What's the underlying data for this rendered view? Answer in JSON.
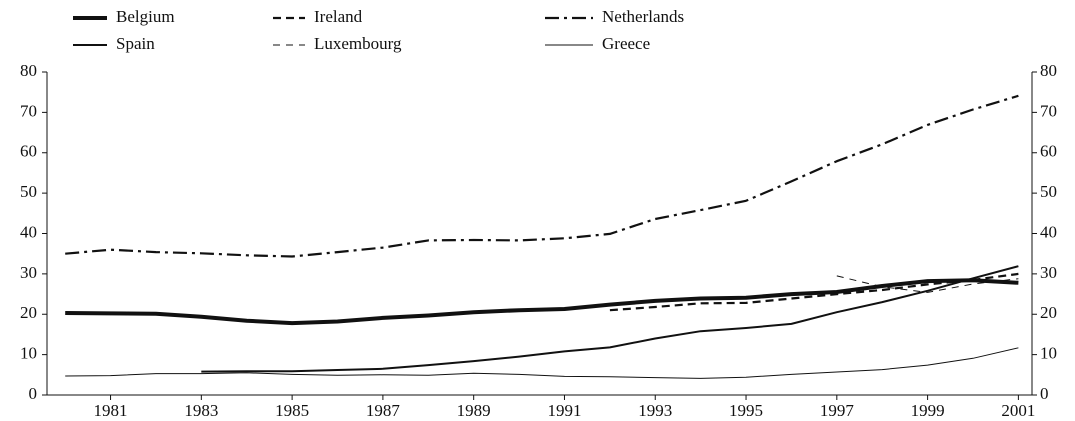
{
  "chart_data": {
    "type": "line",
    "x": [
      1980,
      1981,
      1982,
      1983,
      1984,
      1985,
      1986,
      1987,
      1988,
      1989,
      1990,
      1991,
      1992,
      1993,
      1994,
      1995,
      1996,
      1997,
      1998,
      1999,
      2000,
      2001
    ],
    "series": [
      {
        "name": "Belgium",
        "color": "#111111",
        "values": [
          20.3,
          20.2,
          20.1,
          19.4,
          18.4,
          17.8,
          18.2,
          19.1,
          19.7,
          20.5,
          21.0,
          21.3,
          22.4,
          23.3,
          23.9,
          24.1,
          25.0,
          25.5,
          27.0,
          28.2,
          28.4,
          27.8
        ]
      },
      {
        "name": "Ireland",
        "color": "#111111",
        "values": [
          null,
          null,
          null,
          null,
          null,
          null,
          null,
          null,
          null,
          null,
          null,
          null,
          21.0,
          21.8,
          22.7,
          22.8,
          23.9,
          25.0,
          26.0,
          27.4,
          28.5,
          30.0
        ]
      },
      {
        "name": "Netherlands",
        "color": "#111111",
        "values": [
          35.0,
          36.0,
          35.4,
          35.1,
          34.6,
          34.3,
          35.4,
          36.5,
          38.3,
          38.4,
          38.3,
          38.8,
          39.9,
          43.6,
          45.8,
          48.1,
          52.9,
          57.9,
          62.1,
          66.9,
          70.7,
          74.1
        ]
      },
      {
        "name": "Spain",
        "color": "#111111",
        "values": [
          null,
          null,
          null,
          5.8,
          5.9,
          5.9,
          6.2,
          6.5,
          7.4,
          8.4,
          9.5,
          10.8,
          11.8,
          14.0,
          15.8,
          16.6,
          17.6,
          20.5,
          23.0,
          25.8,
          28.9,
          31.9
        ]
      },
      {
        "name": "Luxembourg",
        "color": "#111111",
        "values": [
          null,
          null,
          null,
          null,
          null,
          null,
          null,
          null,
          null,
          null,
          null,
          null,
          null,
          null,
          null,
          null,
          null,
          29.5,
          26.8,
          25.4,
          27.5,
          28.8
        ]
      },
      {
        "name": "Greece",
        "color": "#111111",
        "values": [
          4.7,
          4.8,
          5.3,
          5.3,
          5.5,
          5.1,
          4.9,
          5.0,
          4.9,
          5.4,
          5.1,
          4.6,
          4.5,
          4.3,
          4.1,
          4.4,
          5.1,
          5.7,
          6.3,
          7.4,
          9.1,
          11.7
        ]
      }
    ],
    "xlim": [
      1979.6,
      2001.3
    ],
    "xticks": [
      1981,
      1983,
      1985,
      1987,
      1989,
      1991,
      1993,
      1995,
      1997,
      1999,
      2001
    ],
    "ylim": [
      0,
      80
    ],
    "yticks": [
      0,
      10,
      20,
      30,
      40,
      50,
      60,
      70,
      80
    ],
    "y2lim": [
      0,
      80
    ],
    "y2ticks": [
      0,
      10,
      20,
      30,
      40,
      50,
      60,
      70,
      80
    ],
    "legend": "top-left"
  }
}
